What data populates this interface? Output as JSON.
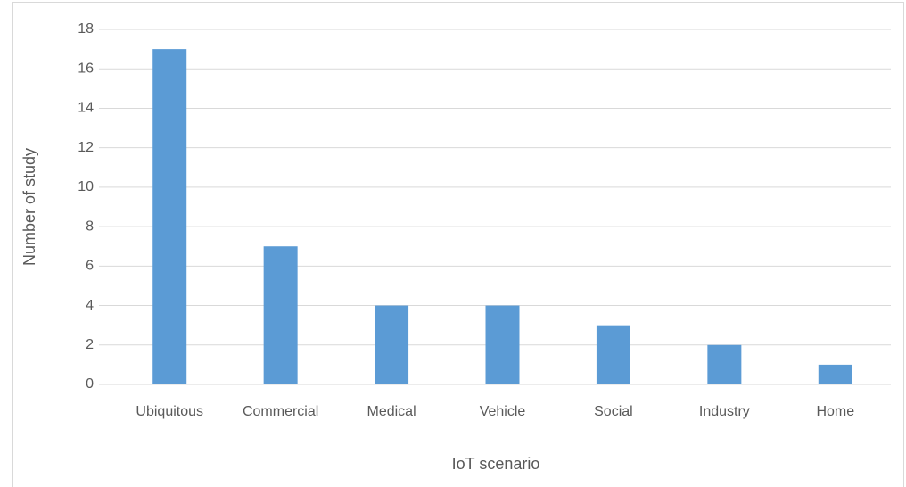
{
  "chart_data": {
    "type": "bar",
    "xlabel": "IoT scenario",
    "ylabel": "Number of study",
    "categories": [
      "Ubiquitous",
      "Commercial",
      "Medical",
      "Vehicle",
      "Social",
      "Industry",
      "Home"
    ],
    "values": [
      17,
      7,
      4,
      4,
      3,
      2,
      1
    ],
    "color": "#5b9bd5",
    "ylim": [
      0,
      18
    ],
    "yticks": [
      0,
      2,
      4,
      6,
      8,
      10,
      12,
      14,
      16,
      18
    ],
    "grid": true
  }
}
